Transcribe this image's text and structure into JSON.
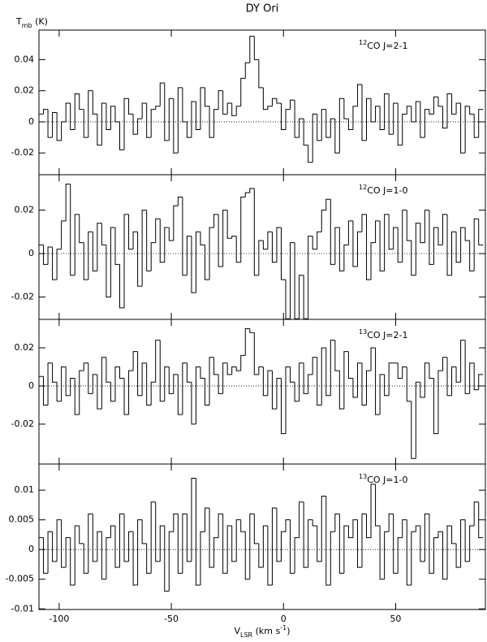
{
  "title": "DY Ori",
  "y_label": [
    "T",
    "mb",
    " (K)"
  ],
  "x_label": [
    "V",
    "LSR",
    " (km s",
    "-1",
    ")"
  ],
  "chart_data": [
    {
      "type": "step",
      "label": {
        "sup": "12",
        "text": "CO J=2-1"
      },
      "color": "#000000",
      "xlim": [
        -109,
        90
      ],
      "ylim": [
        -0.034,
        0.059
      ],
      "yticks": [
        -0.02,
        0,
        0.02,
        0.04
      ],
      "x": [
        -108,
        -106,
        -104,
        -102,
        -100,
        -98,
        -96,
        -94,
        -92,
        -90,
        -88,
        -86,
        -84,
        -82,
        -80,
        -78,
        -76,
        -74,
        -72,
        -70,
        -68,
        -66,
        -64,
        -62,
        -60,
        -58,
        -56,
        -54,
        -52,
        -50,
        -48,
        -46,
        -44,
        -42,
        -40,
        -38,
        -36,
        -34,
        -32,
        -30,
        -28,
        -26,
        -24,
        -22,
        -20,
        -18,
        -16,
        -14,
        -12,
        -10,
        -8,
        -6,
        -4,
        -2,
        0,
        2,
        4,
        6,
        8,
        10,
        12,
        14,
        16,
        18,
        20,
        22,
        24,
        26,
        28,
        30,
        32,
        34,
        36,
        38,
        40,
        42,
        44,
        46,
        48,
        50,
        52,
        54,
        56,
        58,
        60,
        62,
        64,
        66,
        68,
        70,
        72,
        74,
        76,
        78,
        80,
        82,
        84,
        86,
        88
      ],
      "values": [
        0.005,
        0.008,
        -0.01,
        0.006,
        -0.012,
        0.0,
        0.012,
        -0.005,
        0.018,
        0.008,
        -0.01,
        0.02,
        0.005,
        -0.015,
        0.012,
        -0.005,
        0.01,
        0.0,
        -0.018,
        0.015,
        0.005,
        -0.008,
        0.002,
        0.012,
        -0.01,
        0.008,
        0.01,
        0.025,
        -0.012,
        0.015,
        -0.02,
        0.022,
        0.0,
        -0.01,
        0.013,
        -0.005,
        0.022,
        0.01,
        -0.01,
        0.008,
        0.02,
        0.005,
        0.012,
        0.004,
        0.01,
        0.028,
        0.038,
        0.055,
        0.04,
        0.022,
        0.008,
        0.01,
        0.015,
        0.012,
        -0.005,
        0.008,
        0.014,
        -0.01,
        0.002,
        -0.015,
        -0.026,
        0.005,
        -0.012,
        0.008,
        -0.01,
        0.002,
        -0.02,
        0.015,
        0.002,
        -0.005,
        0.01,
        0.024,
        -0.012,
        0.015,
        0.0,
        0.01,
        -0.005,
        0.018,
        -0.008,
        0.012,
        -0.015,
        0.005,
        0.01,
        0.0,
        0.013,
        -0.01,
        0.008,
        0.005,
        0.016,
        0.01,
        -0.004,
        0.018,
        0.005,
        0.012,
        -0.02,
        0.01,
        0.005,
        -0.01,
        0.008
      ]
    },
    {
      "type": "step",
      "label": {
        "sup": "12",
        "text": "CO J=1-0"
      },
      "color": "#000000",
      "xlim": [
        -109,
        90
      ],
      "ylim": [
        -0.0303,
        0.0363
      ],
      "yticks": [
        -0.02,
        0,
        0.02
      ],
      "x": [
        -108,
        -106,
        -104,
        -102,
        -100,
        -98,
        -96,
        -94,
        -92,
        -90,
        -88,
        -86,
        -84,
        -82,
        -80,
        -78,
        -76,
        -74,
        -72,
        -70,
        -68,
        -66,
        -64,
        -62,
        -60,
        -58,
        -56,
        -54,
        -52,
        -50,
        -48,
        -46,
        -44,
        -42,
        -40,
        -38,
        -36,
        -34,
        -32,
        -30,
        -28,
        -26,
        -24,
        -22,
        -20,
        -18,
        -16,
        -14,
        -12,
        -10,
        -8,
        -6,
        -4,
        -2,
        0,
        2,
        4,
        6,
        8,
        10,
        12,
        14,
        16,
        18,
        20,
        22,
        24,
        26,
        28,
        30,
        32,
        34,
        36,
        38,
        40,
        42,
        44,
        46,
        48,
        50,
        52,
        54,
        56,
        58,
        60,
        62,
        64,
        66,
        68,
        70,
        72,
        74,
        76,
        78,
        80,
        82,
        84,
        86,
        88
      ],
      "values": [
        0.004,
        -0.005,
        0.003,
        -0.012,
        0.002,
        0.015,
        0.032,
        -0.01,
        0.018,
        0.005,
        -0.012,
        0.01,
        -0.008,
        0.014,
        0.004,
        -0.02,
        0.012,
        -0.005,
        -0.025,
        0.018,
        0.002,
        0.01,
        -0.015,
        0.02,
        -0.008,
        0.005,
        0.016,
        -0.004,
        0.012,
        0.006,
        0.022,
        0.026,
        -0.01,
        0.008,
        -0.018,
        0.01,
        0.004,
        -0.012,
        0.012,
        0.018,
        -0.006,
        0.02,
        0.007,
        0.008,
        -0.004,
        0.026,
        0.028,
        0.03,
        -0.01,
        0.006,
        0.002,
        0.01,
        -0.004,
        0.012,
        -0.012,
        -0.03,
        0.005,
        -0.03,
        -0.01,
        -0.03,
        0.008,
        0.002,
        0.01,
        0.02,
        0.025,
        -0.005,
        0.012,
        -0.008,
        0.004,
        0.015,
        -0.006,
        0.01,
        0.018,
        -0.012,
        0.005,
        0.015,
        -0.008,
        0.018,
        0.002,
        0.012,
        -0.004,
        0.02,
        0.006,
        -0.01,
        0.014,
        0.005,
        0.02,
        -0.005,
        0.012,
        0.004,
        0.018,
        -0.01,
        0.01,
        -0.004,
        0.012,
        0.006,
        -0.008,
        0.016,
        0.004
      ]
    },
    {
      "type": "step",
      "label": {
        "sup": "13",
        "text": "CO J=2-1"
      },
      "color": "#000000",
      "xlim": [
        -109,
        90
      ],
      "ylim": [
        -0.0409,
        0.0349
      ],
      "yticks": [
        -0.02,
        0,
        0.02
      ],
      "x": [
        -108,
        -106,
        -104,
        -102,
        -100,
        -98,
        -96,
        -94,
        -92,
        -90,
        -88,
        -86,
        -84,
        -82,
        -80,
        -78,
        -76,
        -74,
        -72,
        -70,
        -68,
        -66,
        -64,
        -62,
        -60,
        -58,
        -56,
        -54,
        -52,
        -50,
        -48,
        -46,
        -44,
        -42,
        -40,
        -38,
        -36,
        -34,
        -32,
        -30,
        -28,
        -26,
        -24,
        -22,
        -20,
        -18,
        -16,
        -14,
        -12,
        -10,
        -8,
        -6,
        -4,
        -2,
        0,
        2,
        4,
        6,
        8,
        10,
        12,
        14,
        16,
        18,
        20,
        22,
        24,
        26,
        28,
        30,
        32,
        34,
        36,
        38,
        40,
        42,
        44,
        46,
        48,
        50,
        52,
        54,
        56,
        58,
        60,
        62,
        64,
        66,
        68,
        70,
        72,
        74,
        76,
        78,
        80,
        82,
        84,
        86,
        88
      ],
      "values": [
        0.005,
        -0.01,
        0.012,
        0.002,
        -0.008,
        0.01,
        -0.005,
        0.004,
        -0.015,
        0.008,
        0.012,
        -0.004,
        0.006,
        -0.012,
        0.015,
        0.002,
        -0.008,
        0.01,
        0.004,
        -0.015,
        0.008,
        0.018,
        -0.005,
        0.012,
        -0.01,
        0.002,
        0.024,
        -0.008,
        0.01,
        -0.004,
        0.006,
        -0.015,
        0.012,
        0.002,
        -0.02,
        0.01,
        0.004,
        -0.01,
        0.015,
        0.006,
        -0.004,
        0.012,
        0.006,
        0.01,
        0.008,
        0.016,
        0.03,
        0.028,
        0.006,
        0.01,
        -0.005,
        0.008,
        -0.012,
        0.004,
        -0.025,
        0.01,
        0.002,
        -0.008,
        0.012,
        -0.004,
        0.006,
        0.015,
        -0.01,
        0.02,
        -0.005,
        0.024,
        0.008,
        -0.012,
        0.018,
        0.004,
        -0.006,
        0.012,
        -0.01,
        0.008,
        0.02,
        -0.015,
        0.006,
        -0.005,
        0.012,
        0.012,
        0.004,
        0.01,
        -0.008,
        -0.038,
        0.002,
        -0.006,
        0.012,
        0.004,
        -0.025,
        0.008,
        0.015,
        -0.005,
        0.01,
        0.002,
        0.024,
        -0.004,
        0.012,
        -0.002,
        0.006
      ]
    },
    {
      "type": "step",
      "label": {
        "sup": "13",
        "text": "CO J=1-0"
      },
      "color": "#000000",
      "xlim": [
        -109,
        90
      ],
      "ylim": [
        -0.0101,
        0.0144
      ],
      "yticks": [
        -0.01,
        -0.005,
        0,
        0.005,
        0.01
      ],
      "xticks": [
        -100,
        -50,
        0,
        50
      ],
      "x": [
        -108,
        -106,
        -104,
        -102,
        -100,
        -98,
        -96,
        -94,
        -92,
        -90,
        -88,
        -86,
        -84,
        -82,
        -80,
        -78,
        -76,
        -74,
        -72,
        -70,
        -68,
        -66,
        -64,
        -62,
        -60,
        -58,
        -56,
        -54,
        -52,
        -50,
        -48,
        -46,
        -44,
        -42,
        -40,
        -38,
        -36,
        -34,
        -32,
        -30,
        -28,
        -26,
        -24,
        -22,
        -20,
        -18,
        -16,
        -14,
        -12,
        -10,
        -8,
        -6,
        -4,
        -2,
        0,
        2,
        4,
        6,
        8,
        10,
        12,
        14,
        16,
        18,
        20,
        22,
        24,
        26,
        28,
        30,
        32,
        34,
        36,
        38,
        40,
        42,
        44,
        46,
        48,
        50,
        52,
        54,
        56,
        58,
        60,
        62,
        64,
        66,
        68,
        70,
        72,
        74,
        76,
        78,
        80,
        82,
        84,
        86,
        88
      ],
      "values": [
        0.002,
        -0.004,
        0.003,
        -0.002,
        0.005,
        -0.003,
        0.002,
        -0.006,
        0.004,
        0.001,
        -0.004,
        0.006,
        -0.002,
        0.003,
        -0.005,
        0.002,
        0.004,
        -0.003,
        0.006,
        -0.002,
        0.003,
        -0.006,
        0.005,
        0.001,
        -0.004,
        0.008,
        -0.002,
        0.004,
        -0.007,
        0.003,
        0.006,
        -0.004,
        0.006,
        -0.002,
        0.012,
        -0.006,
        0.003,
        0.007,
        -0.003,
        0.002,
        0.006,
        -0.004,
        0.004,
        -0.002,
        0.005,
        0.003,
        -0.005,
        0.006,
        0.001,
        -0.003,
        0.004,
        -0.006,
        0.007,
        -0.002,
        0.003,
        0.005,
        -0.004,
        0.002,
        0.008,
        -0.003,
        0.005,
        0.004,
        -0.002,
        0.009,
        -0.006,
        0.003,
        0.006,
        -0.004,
        0.004,
        0.002,
        0.005,
        -0.003,
        0.006,
        0.002,
        0.011,
        0.004,
        -0.005,
        0.003,
        0.006,
        -0.004,
        0.002,
        0.005,
        -0.006,
        0.003,
        0.004,
        -0.002,
        0.006,
        -0.004,
        0.002,
        0.003,
        -0.005,
        0.004,
        0.001,
        -0.003,
        0.005,
        -0.002,
        0.004,
        0.008,
        0.002
      ]
    }
  ]
}
